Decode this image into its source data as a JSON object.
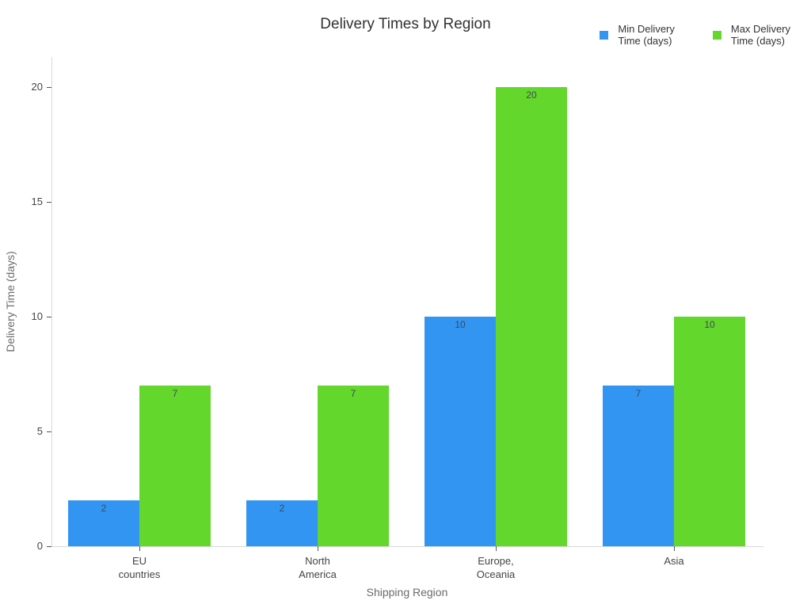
{
  "chart_data": {
    "type": "bar",
    "title": "Delivery Times by Region",
    "xlabel": "Shipping Region",
    "ylabel": "Delivery Time (days)",
    "categories": [
      "EU countries",
      "North America",
      "Europe, Oceania",
      "Asia"
    ],
    "category_lines": [
      [
        "EU",
        "countries"
      ],
      [
        "North",
        "America"
      ],
      [
        "Europe,",
        "Oceania"
      ],
      [
        "Asia"
      ]
    ],
    "series": [
      {
        "name": "Min Delivery Time (days)",
        "legend_lines": [
          "Min Delivery",
          "Time (days)"
        ],
        "color": "#3295F2",
        "values": [
          2,
          2,
          10,
          7
        ]
      },
      {
        "name": "Max Delivery Time (days)",
        "legend_lines": [
          "Max Delivery",
          "Time (days)"
        ],
        "color": "#64D72C",
        "values": [
          7,
          7,
          20,
          10
        ]
      }
    ],
    "ylim": [
      0,
      20
    ],
    "yticks": [
      0,
      5,
      10,
      15,
      20
    ],
    "grid": false,
    "legend_position": "top-right",
    "bar_value_labels": true,
    "axis_line_color": "#d9d9d9"
  }
}
